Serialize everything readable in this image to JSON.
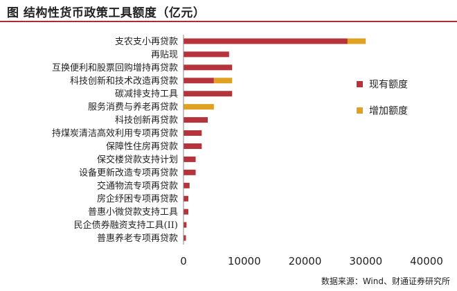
{
  "header": {
    "title": "图  结构性货币政策工具额度（亿元）"
  },
  "footer": {
    "source": "数据来源：Wind、财通证券研究所"
  },
  "chart_data": {
    "type": "bar",
    "orientation": "horizontal",
    "stacked": true,
    "categories": [
      "支农支小再贷款",
      "再贴现",
      "互换便利和股票回购增持再贷款",
      "科技创新和技术改造再贷款",
      "碳减排支持工具",
      "服务消费与养老再贷款",
      "科技创新再贷款",
      "持煤炭清洁高效利用专项再贷款",
      "保障性住房再贷款",
      "保交楼贷款支持计划",
      "设备更新改造专项再贷款",
      "交通物流专项再贷款",
      "房企纾困专项再贷款",
      "普惠小微贷款支持工具",
      "民企债券融资支持工具(II)",
      "普惠养老专项再贷款"
    ],
    "series": [
      {
        "name": "现有额度",
        "color": "#b5333a",
        "values": [
          27000,
          7500,
          8000,
          5000,
          8000,
          0,
          4000,
          3000,
          3000,
          2000,
          2000,
          1000,
          800,
          800,
          500,
          400
        ]
      },
      {
        "name": "增加额度",
        "color": "#e0a020",
        "values": [
          3000,
          0,
          0,
          3000,
          0,
          5000,
          0,
          0,
          0,
          0,
          0,
          0,
          0,
          0,
          0,
          0
        ]
      }
    ],
    "xlim": [
      0,
      40000
    ],
    "xticks": [
      0,
      10000,
      20000,
      30000,
      40000
    ],
    "legend": "right",
    "grid": false
  }
}
